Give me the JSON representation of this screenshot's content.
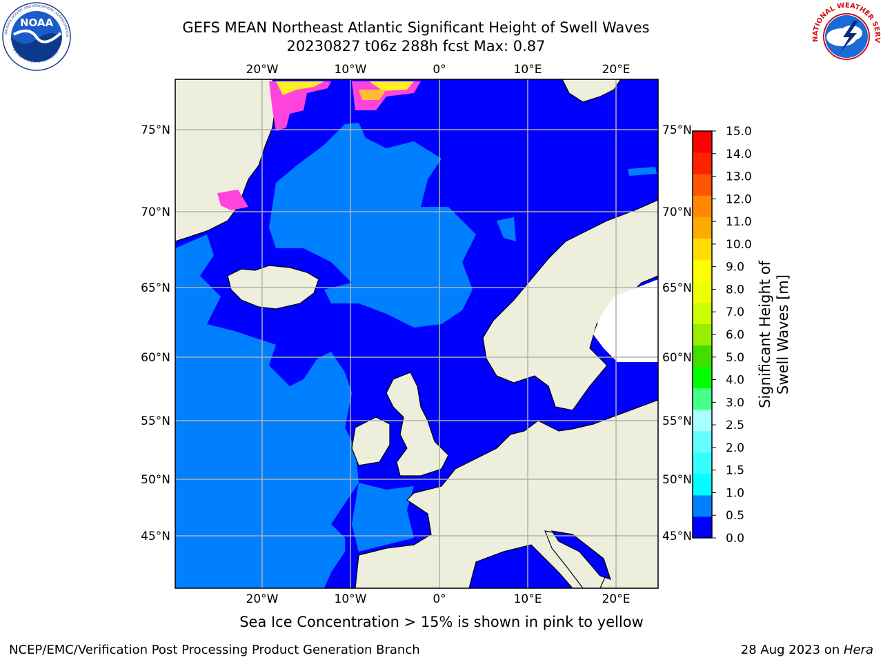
{
  "title": {
    "line1": "GEFS MEAN Northeast Atlantic Significant Height of Swell Waves",
    "line2": "20230827 t06z 288h fcst   Max: 0.87"
  },
  "logos": {
    "left": "noaa-logo",
    "left_text": "NOAA",
    "left_ring_text": "NATIONAL OCEANIC AND ATMOSPHERIC ADMINISTRATION",
    "left_ring_text_bottom": "U.S. DEPARTMENT OF COMMERCE",
    "right": "nws-logo",
    "right_ring_text": "NATIONAL WEATHER SERVICE"
  },
  "map": {
    "lon_ticks_top": [
      "20°W",
      "10°W",
      "0°",
      "10°E",
      "20°E"
    ],
    "lon_ticks_bottom": [
      "20°W",
      "10°W",
      "0°",
      "10°E",
      "20°E"
    ],
    "lat_ticks_left": [
      "75°N",
      "70°N",
      "65°N",
      "60°N",
      "55°N",
      "50°N",
      "45°N"
    ],
    "lat_ticks_right": [
      "75°N",
      "70°N",
      "65°N",
      "60°N",
      "55°N",
      "50°N",
      "45°N"
    ],
    "colors": {
      "ocean_low": "#0000ff",
      "ocean_mid": "#0080ff",
      "land": "#eeeedc",
      "grid": "#b0b0b0",
      "ice_pink": "#ff44dd",
      "ice_yellow": "#ffee22",
      "ice_orange": "#ffbb33"
    }
  },
  "colorbar": {
    "title": "Significant Height of Swell Waves [m]",
    "tick_labels": [
      "0.0",
      "0.5",
      "1.0",
      "1.5",
      "2.0",
      "2.5",
      "3.0",
      "4.0",
      "5.0",
      "6.0",
      "7.0",
      "8.0",
      "9.0",
      "10.0",
      "11.0",
      "12.0",
      "13.0",
      "14.0",
      "15.0"
    ],
    "colors": [
      "#0000ff",
      "#0080ff",
      "#00ffff",
      "#33ffff",
      "#66ffff",
      "#aaffff",
      "#44ff88",
      "#00ff00",
      "#44dd00",
      "#99ee00",
      "#ccff00",
      "#eeff00",
      "#ffff00",
      "#ffdd00",
      "#ffaa00",
      "#ff8800",
      "#ff5500",
      "#ff2200",
      "#ff0000"
    ]
  },
  "footer": {
    "note": "Sea Ice Concentration > 15% is shown in pink to yellow",
    "left": "NCEP/EMC/Verification Post Processing Product Generation Branch",
    "right_prefix": "28 Aug 2023 on ",
    "right_host": "Hera"
  }
}
